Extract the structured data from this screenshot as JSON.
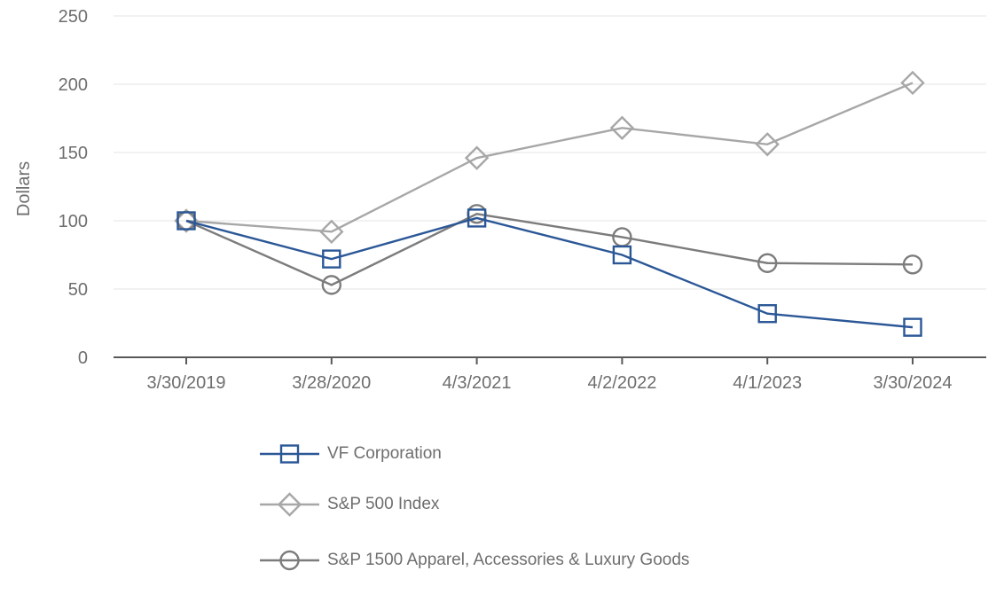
{
  "chart_data": {
    "type": "line",
    "title": "",
    "ylabel": "Dollars",
    "xlabel": "",
    "x_categories": [
      "3/30/2019",
      "3/28/2020",
      "4/3/2021",
      "4/2/2022",
      "4/1/2023",
      "3/30/2024"
    ],
    "y_ticks": [
      0,
      50,
      100,
      150,
      200,
      250
    ],
    "ylim": [
      0,
      250
    ],
    "grid": "horizontal-only",
    "legend_position": "bottom-left",
    "series": [
      {
        "name": "VF Corporation",
        "marker": "square",
        "color": "#2B5797",
        "values": [
          100,
          72,
          102,
          75,
          32,
          22
        ]
      },
      {
        "name": "S&P 500 Index",
        "marker": "diamond",
        "color": "#A7A7A7",
        "values": [
          100,
          92,
          146,
          168,
          156,
          201
        ]
      },
      {
        "name": "S&P 1500 Apparel, Accessories & Luxury Goods",
        "marker": "circle",
        "color": "#7C7C7C",
        "values": [
          100,
          53,
          105,
          88,
          69,
          68
        ]
      }
    ],
    "axis_color": "#595959",
    "gridline_color": "#E4E4E4",
    "text_color": "#6E6E6E",
    "marker_fill": "none"
  }
}
